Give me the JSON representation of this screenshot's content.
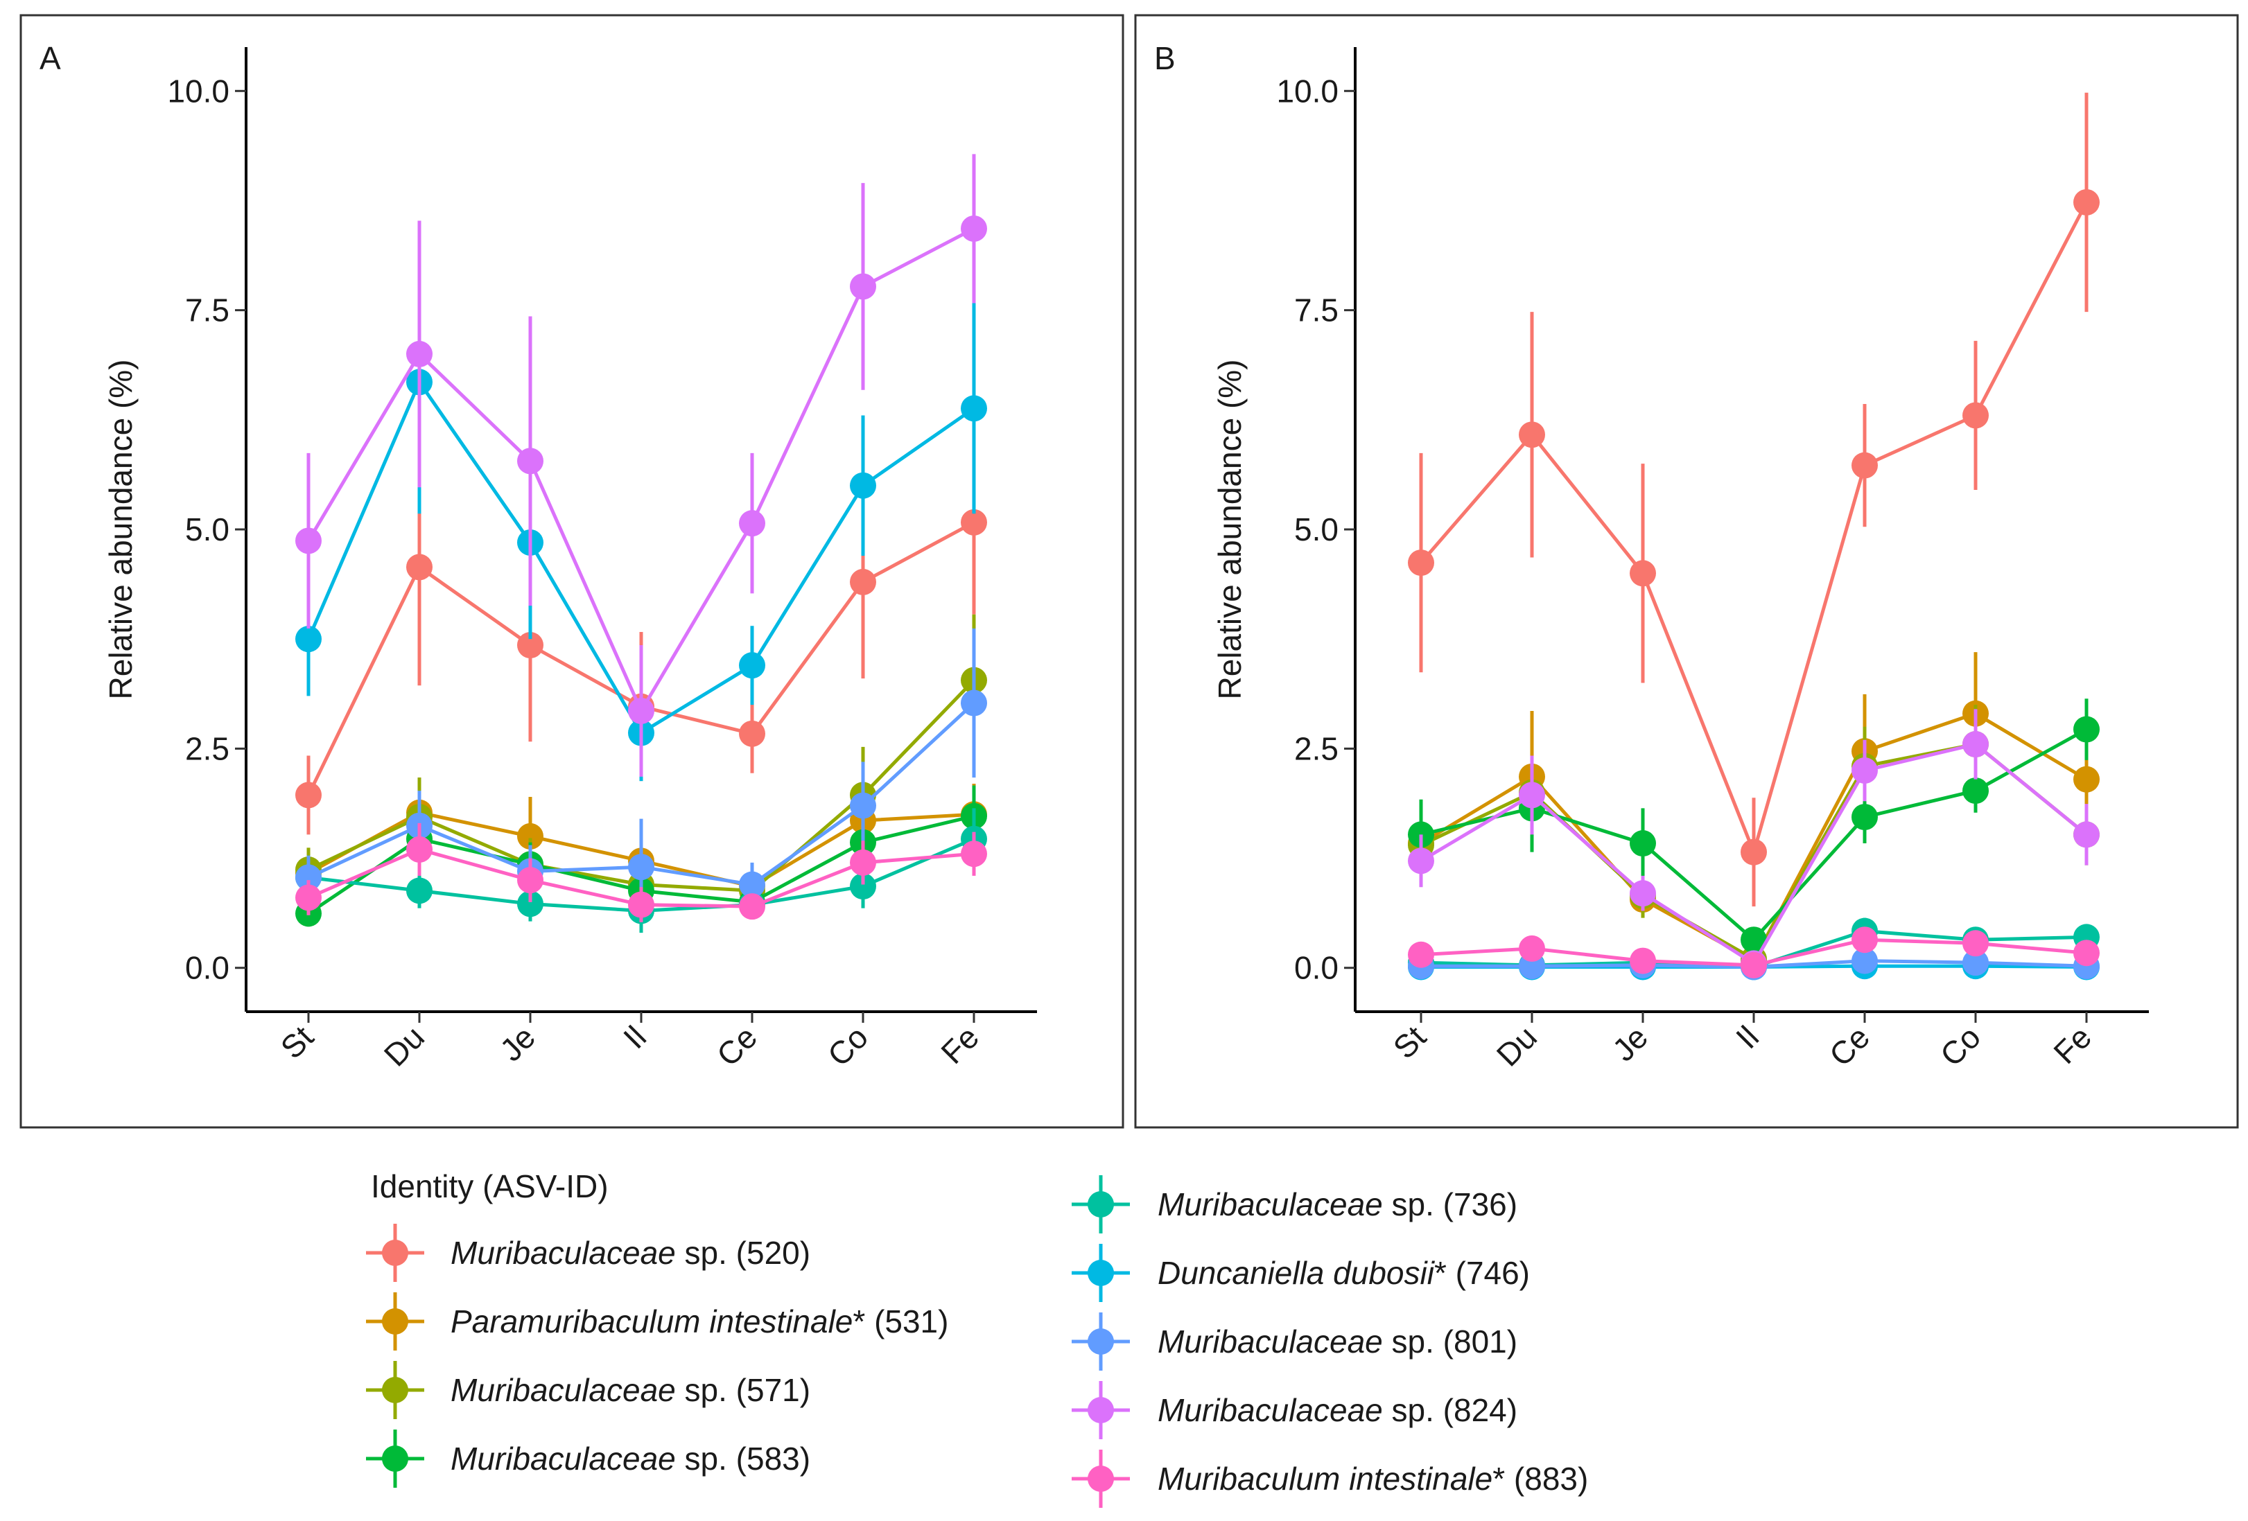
{
  "chart_data": [
    {
      "type": "line",
      "panel_label": "A",
      "ylabel": "Relative abundance (%)",
      "xlabel": "",
      "categories": [
        "St",
        "Du",
        "Je",
        "Il",
        "Ce",
        "Co",
        "Fe"
      ],
      "ylim": [
        -0.5,
        10.5
      ],
      "yticks": [
        0.0,
        2.5,
        5.0,
        7.5,
        10.0
      ],
      "ytick_labels": [
        "0.0",
        "2.5",
        "5.0",
        "7.5",
        "10.0"
      ],
      "series": [
        {
          "id": "520",
          "values": [
            1.97,
            4.57,
            3.68,
            2.98,
            2.67,
            4.4,
            5.08
          ],
          "errors": [
            0.45,
            1.35,
            1.1,
            0.85,
            0.45,
            1.1,
            1.05
          ]
        },
        {
          "id": "531",
          "values": [
            1.08,
            1.77,
            1.5,
            1.22,
            0.93,
            1.68,
            1.75
          ],
          "errors": [
            0.25,
            0.4,
            0.45,
            0.3,
            0.15,
            0.4,
            0.35
          ]
        },
        {
          "id": "571",
          "values": [
            1.12,
            1.72,
            1.18,
            0.95,
            0.88,
            1.97,
            3.28
          ],
          "errors": [
            0.25,
            0.45,
            0.3,
            0.25,
            0.15,
            0.55,
            0.75
          ]
        },
        {
          "id": "583",
          "values": [
            0.62,
            1.47,
            1.18,
            0.88,
            0.75,
            1.43,
            1.73
          ],
          "errors": [
            0.15,
            0.35,
            0.25,
            0.2,
            0.15,
            0.3,
            0.35
          ]
        },
        {
          "id": "736",
          "values": [
            1.03,
            0.88,
            0.73,
            0.65,
            0.72,
            0.93,
            1.47
          ],
          "errors": [
            0.25,
            0.2,
            0.2,
            0.25,
            0.15,
            0.25,
            0.35
          ]
        },
        {
          "id": "746",
          "values": [
            3.75,
            6.68,
            4.85,
            2.68,
            3.45,
            5.5,
            6.38
          ],
          "errors": [
            0.65,
            1.5,
            1.1,
            0.55,
            0.45,
            0.8,
            1.2
          ]
        },
        {
          "id": "801",
          "values": [
            1.03,
            1.62,
            1.1,
            1.15,
            0.95,
            1.85,
            3.02
          ],
          "errors": [
            0.25,
            0.4,
            0.3,
            0.55,
            0.25,
            0.5,
            0.85
          ]
        },
        {
          "id": "824",
          "values": [
            4.87,
            7.0,
            5.78,
            2.93,
            5.07,
            7.77,
            8.43
          ],
          "errors": [
            1.0,
            1.52,
            1.65,
            0.75,
            0.8,
            1.18,
            0.85
          ]
        },
        {
          "id": "883",
          "values": [
            0.8,
            1.35,
            1.0,
            0.72,
            0.7,
            1.2,
            1.3
          ],
          "errors": [
            0.2,
            0.3,
            0.25,
            0.2,
            0.12,
            0.25,
            0.25
          ]
        }
      ]
    },
    {
      "type": "line",
      "panel_label": "B",
      "ylabel": "Relative abundance (%)",
      "xlabel": "",
      "categories": [
        "St",
        "Du",
        "Je",
        "Il",
        "Ce",
        "Co",
        "Fe"
      ],
      "ylim": [
        -0.5,
        10.5
      ],
      "yticks": [
        0.0,
        2.5,
        5.0,
        7.5,
        10.0
      ],
      "ytick_labels": [
        "0.0",
        "2.5",
        "5.0",
        "7.5",
        "10.0"
      ],
      "series": [
        {
          "id": "520",
          "values": [
            4.62,
            6.08,
            4.5,
            1.32,
            5.73,
            6.3,
            8.73
          ],
          "errors": [
            1.25,
            1.4,
            1.25,
            0.62,
            0.7,
            0.85,
            1.25
          ]
        },
        {
          "id": "531",
          "values": [
            1.42,
            2.18,
            0.78,
            0.08,
            2.47,
            2.9,
            2.15
          ],
          "errors": [
            0.3,
            0.75,
            0.2,
            0.05,
            0.65,
            0.7,
            0.4
          ]
        },
        {
          "id": "571",
          "values": [
            1.4,
            2.0,
            0.82,
            0.1,
            2.3,
            2.55,
            1.52
          ],
          "errors": [
            0.3,
            0.4,
            0.25,
            0.05,
            0.45,
            0.45,
            0.35
          ]
        },
        {
          "id": "583",
          "values": [
            1.52,
            1.82,
            1.42,
            0.32,
            1.72,
            2.02,
            2.72
          ],
          "errors": [
            0.4,
            0.5,
            0.4,
            0.12,
            0.3,
            0.25,
            0.35
          ]
        },
        {
          "id": "736",
          "values": [
            0.06,
            0.03,
            0.06,
            0.01,
            0.42,
            0.32,
            0.35
          ],
          "errors": [
            0.03,
            0.02,
            0.03,
            0.01,
            0.15,
            0.1,
            0.15
          ]
        },
        {
          "id": "746",
          "values": [
            0.01,
            0.01,
            0.01,
            0.01,
            0.02,
            0.02,
            0.01
          ],
          "errors": [
            0.01,
            0.01,
            0.01,
            0.01,
            0.01,
            0.01,
            0.01
          ]
        },
        {
          "id": "801",
          "values": [
            0.02,
            0.02,
            0.03,
            0.01,
            0.08,
            0.06,
            0.02
          ],
          "errors": [
            0.01,
            0.01,
            0.02,
            0.01,
            0.03,
            0.03,
            0.01
          ]
        },
        {
          "id": "824",
          "values": [
            1.22,
            1.97,
            0.85,
            0.05,
            2.25,
            2.55,
            1.52
          ],
          "errors": [
            0.3,
            0.45,
            0.2,
            0.03,
            0.35,
            0.4,
            0.35
          ]
        },
        {
          "id": "883",
          "values": [
            0.15,
            0.22,
            0.08,
            0.03,
            0.32,
            0.28,
            0.17
          ],
          "errors": [
            0.05,
            0.07,
            0.03,
            0.02,
            0.08,
            0.08,
            0.05
          ]
        }
      ]
    }
  ],
  "legend": {
    "title": "Identity (ASV-ID)",
    "entries": [
      {
        "id": "520",
        "italic": "Muribaculaceae",
        "rest": " sp. (520)",
        "color": "#F8766D"
      },
      {
        "id": "531",
        "italic": "Paramuribaculum intestinale",
        "rest": "* (531)",
        "color": "#D39200"
      },
      {
        "id": "571",
        "italic": "Muribaculaceae",
        "rest": " sp. (571)",
        "color": "#93AA00"
      },
      {
        "id": "583",
        "italic": "Muribaculaceae",
        "rest": " sp. (583)",
        "color": "#00BA38"
      },
      {
        "id": "736",
        "italic": "Muribaculaceae",
        "rest": " sp. (736)",
        "color": "#00C19F"
      },
      {
        "id": "746",
        "italic": "Duncaniella dubosii",
        "rest": "* (746)",
        "color": "#00B9E3"
      },
      {
        "id": "801",
        "italic": "Muribaculaceae",
        "rest": " sp. (801)",
        "color": "#619CFF"
      },
      {
        "id": "824",
        "italic": "Muribaculaceae",
        "rest": " sp. (824)",
        "color": "#DB72FB"
      },
      {
        "id": "883",
        "italic": "Muribaculum intestinale",
        "rest": "* (883)",
        "color": "#FF61C3"
      }
    ]
  }
}
